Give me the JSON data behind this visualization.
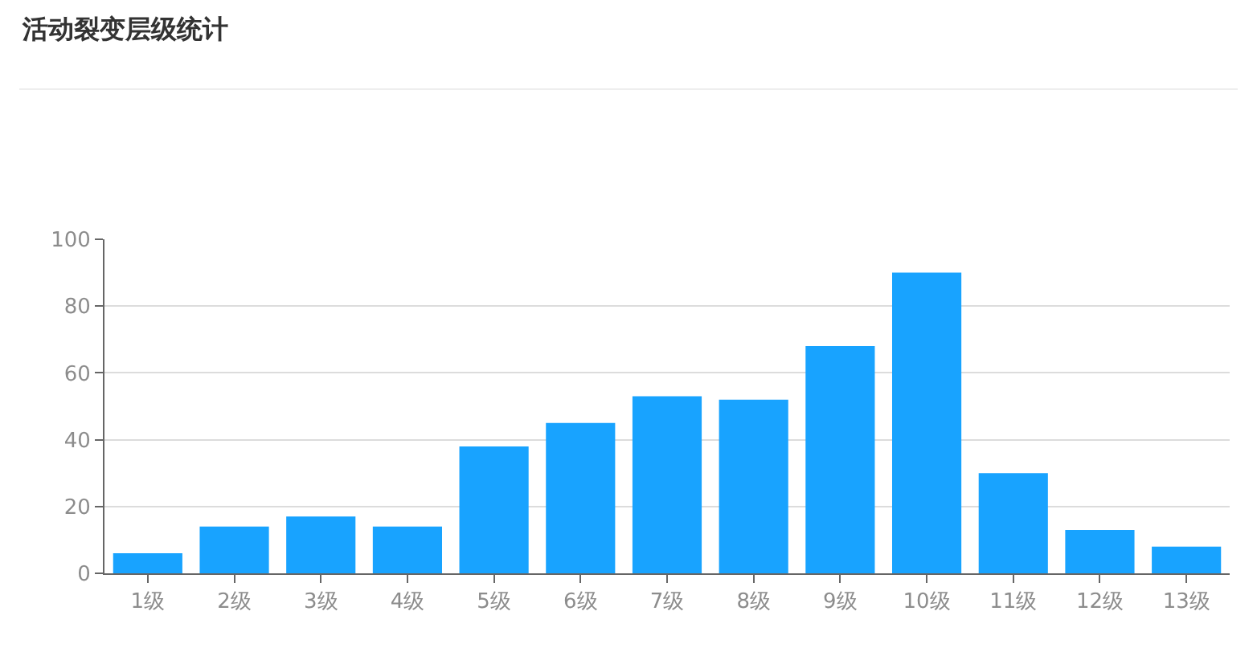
{
  "chart_data": {
    "type": "bar",
    "title": "活动裂变层级统计",
    "categories": [
      "1级",
      "2级",
      "3级",
      "4级",
      "5级",
      "6级",
      "7级",
      "8级",
      "9级",
      "10级",
      "11级",
      "12级",
      "13级"
    ],
    "values": [
      6,
      14,
      17,
      14,
      38,
      45,
      53,
      52,
      68,
      90,
      30,
      13,
      8
    ],
    "color": "#18a3ff",
    "ylim": [
      0,
      100
    ],
    "yticks": [
      0,
      20,
      40,
      60,
      80,
      100
    ],
    "grid": "y",
    "legend": false
  }
}
